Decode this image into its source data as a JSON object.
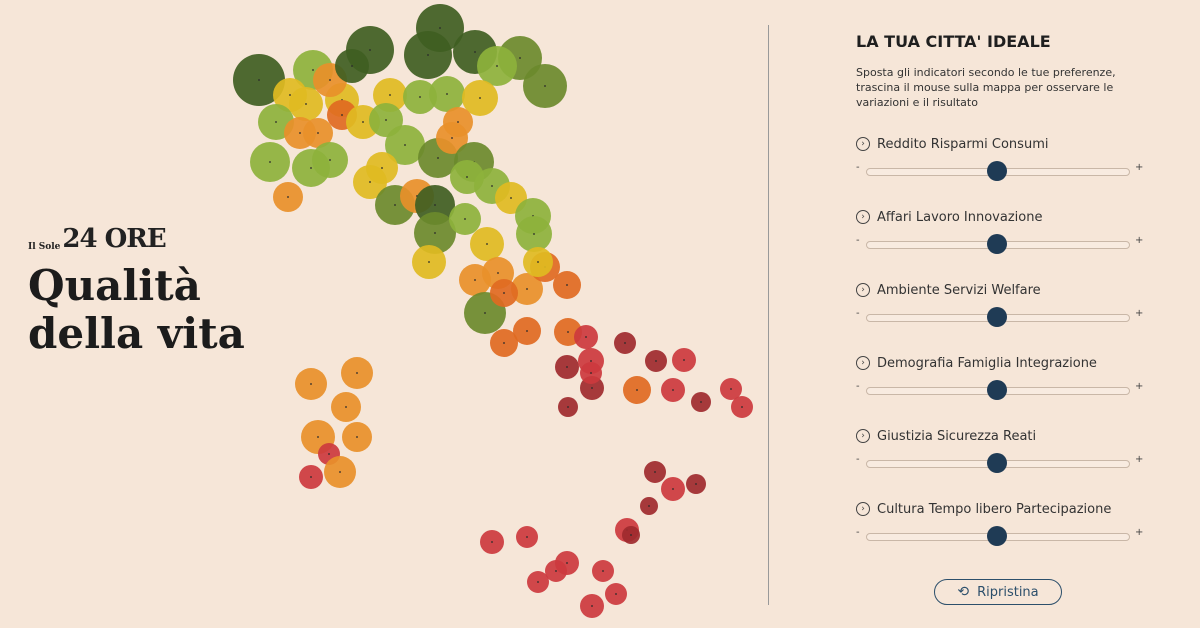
{
  "brand": {
    "masthead_small": "Il Sole",
    "masthead_big": "24 ORE",
    "title_line1": "Qualità",
    "title_line2": "della vita"
  },
  "panel": {
    "title": "LA TUA CITTA' IDEALE",
    "description": "Sposta gli indicatori secondo le tue preferenze, trascina il mouse sulla mappa per osservare le variazioni e il risultato",
    "sliders": [
      {
        "label": "Reddito Risparmi Consumi",
        "value": 0.5
      },
      {
        "label": "Affari Lavoro Innovazione",
        "value": 0.5
      },
      {
        "label": "Ambiente Servizi Welfare",
        "value": 0.5
      },
      {
        "label": "Demografia Famiglia Integrazione",
        "value": 0.5
      },
      {
        "label": "Giustizia Sicurezza Reati",
        "value": 0.5
      },
      {
        "label": "Cultura Tempo libero Partecipazione",
        "value": 0.5
      }
    ],
    "minus": "-",
    "plus": "+",
    "reset_label": "Ripristina",
    "chevron_icon": "chevron-right-circle-icon",
    "reset_icon": "refresh-icon"
  },
  "colors": {
    "background": "#f6e6d8",
    "scale": [
      "#3f5e22",
      "#6b8a2c",
      "#8db23c",
      "#e0bb22",
      "#e8902a",
      "#e06a22",
      "#cc3a3e",
      "#9e2a2e"
    ],
    "thumb": "#1f3b55"
  }
}
